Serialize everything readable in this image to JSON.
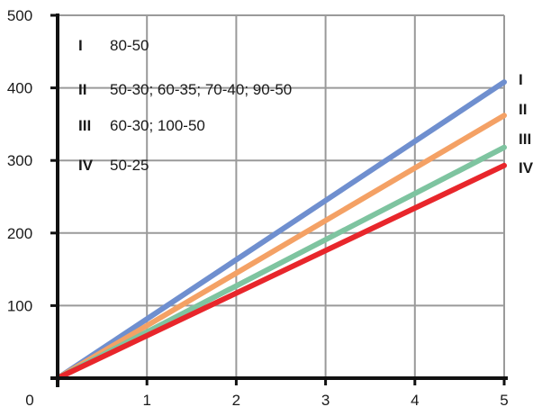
{
  "chart_data": {
    "type": "line",
    "xlim": [
      0,
      5
    ],
    "ylim": [
      0,
      500
    ],
    "x_ticks": [
      1,
      2,
      3,
      4,
      5
    ],
    "y_ticks": [
      100,
      200,
      300,
      400,
      500
    ],
    "origin_label": "0",
    "grid": true,
    "legend_position": "top-left",
    "series": [
      {
        "name": "I",
        "label": "80-50",
        "color": "#6f8fcf",
        "points": [
          [
            0,
            0
          ],
          [
            5,
            408
          ]
        ]
      },
      {
        "name": "II",
        "label": "50-30; 60-35; 70-40; 90-50",
        "color": "#f4a165",
        "points": [
          [
            0,
            0
          ],
          [
            5,
            362
          ]
        ]
      },
      {
        "name": "III",
        "label": "60-30; 100-50",
        "color": "#7ec4a0",
        "points": [
          [
            0,
            0
          ],
          [
            5,
            318
          ]
        ]
      },
      {
        "name": "IV",
        "label": "50-25",
        "color": "#e8262b",
        "points": [
          [
            0,
            0
          ],
          [
            5,
            293
          ]
        ]
      }
    ]
  }
}
